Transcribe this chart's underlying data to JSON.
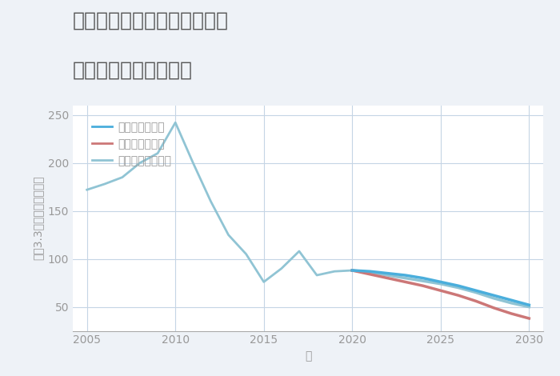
{
  "title_line1": "千葉県千葉市中央区今井町の",
  "title_line2": "中古戸建ての価格推移",
  "xlabel": "年",
  "ylabel": "坪（3.3㎡）単価（万円）",
  "background_color": "#eef2f7",
  "plot_bg_color": "#ffffff",
  "grid_color": "#c5d5e5",
  "title_color": "#555555",
  "axis_color": "#999999",
  "years_history": [
    2005,
    2006,
    2007,
    2008,
    2009,
    2010,
    2011,
    2012,
    2013,
    2014,
    2015,
    2016,
    2017,
    2018,
    2019,
    2020
  ],
  "values_history": [
    172,
    178,
    185,
    200,
    210,
    242,
    200,
    160,
    125,
    105,
    76,
    90,
    108,
    83,
    87,
    88
  ],
  "years_future": [
    2020,
    2021,
    2022,
    2023,
    2024,
    2025,
    2026,
    2027,
    2028,
    2029,
    2030
  ],
  "good_scenario": [
    88,
    87,
    85,
    83,
    80,
    76,
    72,
    67,
    62,
    57,
    52
  ],
  "normal_scenario": [
    88,
    86,
    83,
    80,
    77,
    74,
    70,
    65,
    59,
    54,
    50
  ],
  "bad_scenario": [
    88,
    84,
    80,
    76,
    72,
    67,
    62,
    56,
    49,
    43,
    38
  ],
  "good_color": "#4aaedc",
  "normal_color": "#90c4d4",
  "bad_color": "#cc7777",
  "history_color": "#90c4d4",
  "ylim": [
    25,
    260
  ],
  "xlim": [
    2004.2,
    2030.8
  ],
  "yticks": [
    50,
    100,
    150,
    200,
    250
  ],
  "xticks": [
    2005,
    2010,
    2015,
    2020,
    2025,
    2030
  ],
  "legend_labels": [
    "グッドシナリオ",
    "バッドシナリオ",
    "ノーマルシナリオ"
  ],
  "title_fontsize": 18,
  "label_fontsize": 10,
  "tick_fontsize": 10,
  "legend_fontsize": 10
}
